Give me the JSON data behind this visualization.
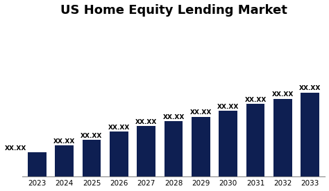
{
  "title": "US Home Equity Lending Market",
  "years": [
    "2023",
    "2024",
    "2025",
    "2026",
    "2027",
    "2028",
    "2029",
    "2030",
    "2031",
    "2032",
    "2033"
  ],
  "values": [
    1.0,
    1.28,
    1.52,
    1.85,
    2.08,
    2.28,
    2.48,
    2.72,
    3.0,
    3.22,
    3.48
  ],
  "bar_color": "#0e1f52",
  "label_text": "XX.XX",
  "background_color": "#ffffff",
  "title_fontsize": 13,
  "label_fontsize": 6.5,
  "xlabel_fontsize": 7.5,
  "bar_width": 0.68
}
